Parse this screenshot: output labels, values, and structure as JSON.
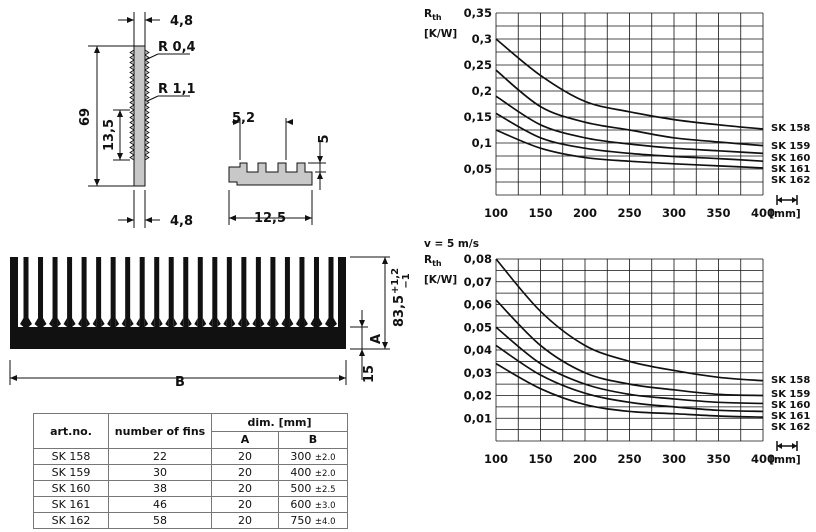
{
  "drawing": {
    "fin_top_width": "4,8",
    "fin_bottom_width": "4,8",
    "radius_1": "R 0,4",
    "radius_2": "R 1,1",
    "height_total": "69",
    "height_fin_section": "13,5",
    "clip_width_1": "5,2",
    "clip_height": "5",
    "clip_width_2": "12,5",
    "label_b": "B",
    "label_a": "A",
    "base_thickness": "15",
    "profile_height": "83,5",
    "profile_height_tol_plus": "+1,2",
    "profile_height_tol_minus": "−1"
  },
  "chart_data": [
    {
      "type": "line",
      "title": "",
      "ylabel": "R",
      "ylabel_sub": "th",
      "yunit": "[K/W]",
      "xunit": "[mm]",
      "x": [
        100,
        150,
        200,
        250,
        300,
        350,
        400
      ],
      "xlim": [
        100,
        400
      ],
      "ylim": [
        0,
        0.35
      ],
      "yticks": [
        "0,05",
        "0,1",
        "0,15",
        "0,2",
        "0,25",
        "0,3",
        "0,35"
      ],
      "xticks": [
        "100",
        "150",
        "200",
        "250",
        "300",
        "350",
        "400"
      ],
      "grid": true,
      "series": [
        {
          "name": "SK 158",
          "values": [
            0.3,
            0.23,
            0.18,
            0.16,
            0.145,
            0.135,
            0.127
          ]
        },
        {
          "name": "SK 159",
          "values": [
            0.24,
            0.17,
            0.14,
            0.125,
            0.11,
            0.102,
            0.095
          ]
        },
        {
          "name": "SK 160",
          "values": [
            0.19,
            0.135,
            0.11,
            0.098,
            0.09,
            0.085,
            0.08
          ]
        },
        {
          "name": "SK 161",
          "values": [
            0.157,
            0.11,
            0.09,
            0.08,
            0.074,
            0.07,
            0.065
          ]
        },
        {
          "name": "SK 162",
          "values": [
            0.125,
            0.09,
            0.072,
            0.065,
            0.06,
            0.056,
            0.052
          ]
        }
      ]
    },
    {
      "type": "line",
      "title": "v = 5 m/s",
      "ylabel": "R",
      "ylabel_sub": "th",
      "yunit": "[K/W]",
      "xunit": "[mm]",
      "x": [
        100,
        150,
        200,
        250,
        300,
        350,
        400
      ],
      "xlim": [
        100,
        400
      ],
      "ylim": [
        0,
        0.08
      ],
      "yticks": [
        "0,01",
        "0,02",
        "0,03",
        "0,04",
        "0,05",
        "0,06",
        "0,07",
        "0,08"
      ],
      "xticks": [
        "100",
        "150",
        "200",
        "250",
        "300",
        "350",
        "400"
      ],
      "grid": true,
      "series": [
        {
          "name": "SK 158",
          "values": [
            0.08,
            0.057,
            0.042,
            0.035,
            0.031,
            0.028,
            0.0265
          ]
        },
        {
          "name": "SK 159",
          "values": [
            0.062,
            0.042,
            0.03,
            0.025,
            0.0225,
            0.0205,
            0.02
          ]
        },
        {
          "name": "SK 160",
          "values": [
            0.05,
            0.034,
            0.025,
            0.0205,
            0.0185,
            0.017,
            0.0165
          ]
        },
        {
          "name": "SK 161",
          "values": [
            0.042,
            0.029,
            0.021,
            0.017,
            0.015,
            0.0135,
            0.013
          ]
        },
        {
          "name": "SK 162",
          "values": [
            0.034,
            0.023,
            0.016,
            0.013,
            0.012,
            0.011,
            0.0105
          ]
        }
      ]
    }
  ],
  "table": {
    "headers": {
      "art_no": "art.no.",
      "number_of_fins": "number of fins",
      "dim": "dim. [mm]",
      "a": "A",
      "b": "B"
    },
    "rows": [
      {
        "art": "SK 158",
        "fins": "22",
        "a": "20",
        "b": "300",
        "tol": "±2.0"
      },
      {
        "art": "SK 159",
        "fins": "30",
        "a": "20",
        "b": "400",
        "tol": "±2.0"
      },
      {
        "art": "SK 160",
        "fins": "38",
        "a": "20",
        "b": "500",
        "tol": "±2.5"
      },
      {
        "art": "SK 161",
        "fins": "46",
        "a": "20",
        "b": "600",
        "tol": "±3.0"
      },
      {
        "art": "SK 162",
        "fins": "58",
        "a": "20",
        "b": "750",
        "tol": "±4.0"
      }
    ]
  }
}
